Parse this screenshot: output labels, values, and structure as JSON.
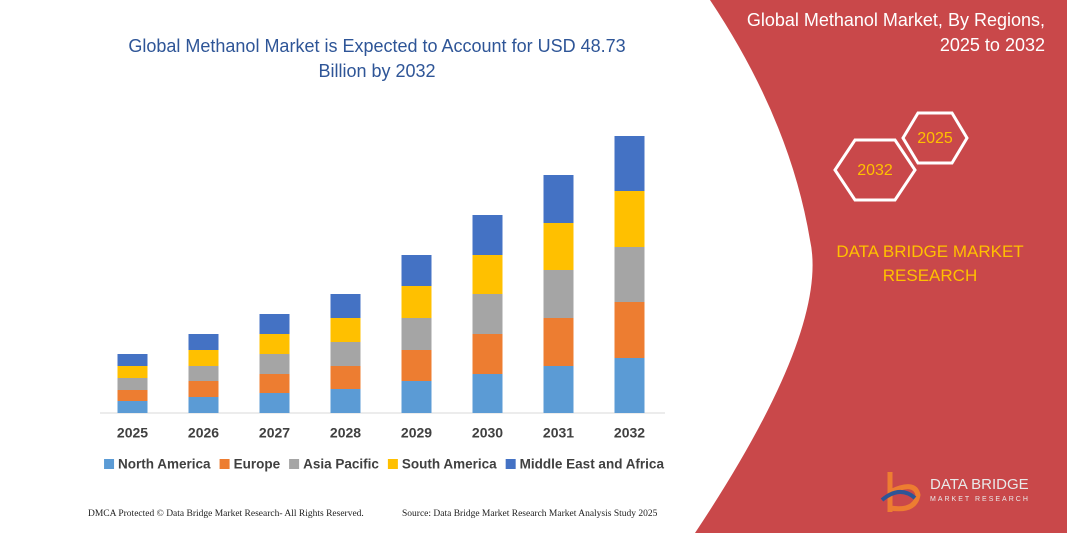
{
  "chart_data": {
    "type": "bar",
    "stacked": true,
    "title": "Global Methanol Market is Expected to Account for USD 48.73 Billion by 2032",
    "categories": [
      "2025",
      "2026",
      "2027",
      "2028",
      "2029",
      "2030",
      "2031",
      "2032"
    ],
    "series": [
      {
        "name": "North America",
        "color": "#5b9bd5",
        "values": [
          12,
          16,
          20,
          24,
          32,
          39,
          47,
          55
        ]
      },
      {
        "name": "Europe",
        "color": "#ed7d31",
        "values": [
          11,
          16,
          19,
          23,
          31,
          40,
          48,
          56
        ]
      },
      {
        "name": "Asia Pacific",
        "color": "#a5a5a5",
        "values": [
          12,
          15,
          20,
          24,
          32,
          40,
          48,
          55
        ]
      },
      {
        "name": "South America",
        "color": "#ffc000",
        "values": [
          12,
          16,
          20,
          24,
          32,
          39,
          47,
          56
        ]
      },
      {
        "name": "Middle East and Africa",
        "color": "#4472c4",
        "values": [
          12,
          16,
          20,
          24,
          31,
          40,
          48,
          55
        ]
      }
    ]
  },
  "panel": {
    "title": "Global Methanol Market, By Regions, 2025 to 2032",
    "hex_end": "2032",
    "hex_start": "2025",
    "brand": "DATA BRIDGE MARKET RESEARCH"
  },
  "footer": {
    "left": "DMCA Protected © Data Bridge Market Research- All Rights Reserved.",
    "right": "Source: Data Bridge Market Research Market Analysis Study 2025"
  },
  "logo": {
    "name": "DATA BRIDGE",
    "tagline": "MARKET RESEARCH"
  }
}
